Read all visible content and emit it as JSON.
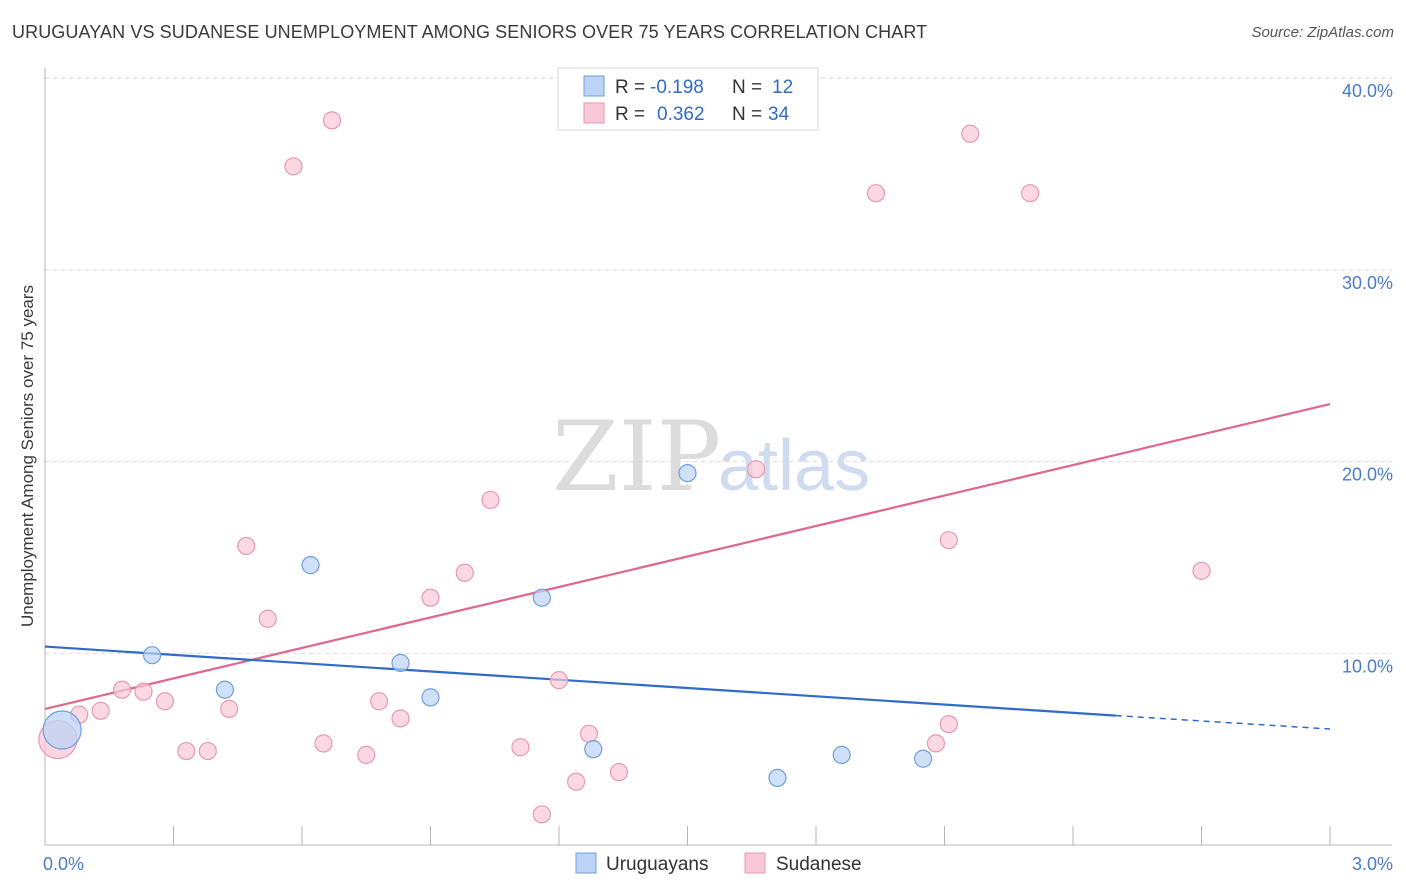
{
  "header": {
    "title": "URUGUAYAN VS SUDANESE UNEMPLOYMENT AMONG SENIORS OVER 75 YEARS CORRELATION CHART",
    "source": "Source: ZipAtlas.com"
  },
  "watermark": {
    "zip": "ZIP",
    "atlas": "atlas"
  },
  "colors": {
    "uruguayans_fill": "#bcd3f5",
    "uruguayans_stroke": "#6f9fdc",
    "uruguayans_line": "#2f6bc7",
    "sudanese_fill": "#f9c8d6",
    "sudanese_stroke": "#e899b1",
    "sudanese_line": "#e06890",
    "grid": "#d9d9d9",
    "tick_label": "#4a7cc9"
  },
  "legend": {
    "rows": [
      {
        "r_label": "R =",
        "r_value": "-0.198",
        "n_label": "N =",
        "n_value": "12"
      },
      {
        "r_label": "R =",
        "r_value": "0.362",
        "n_label": "N =",
        "n_value": "34"
      }
    ]
  },
  "chart_data": {
    "type": "scatter",
    "title": "URUGUAYAN VS SUDANESE UNEMPLOYMENT AMONG SENIORS OVER 75 YEARS CORRELATION CHART",
    "xlabel": "",
    "ylabel": "Unemployment Among Seniors over 75 years",
    "xlim": [
      0,
      3.0
    ],
    "ylim": [
      0,
      41
    ],
    "x_tick_labels": [
      "0.0%",
      "3.0%"
    ],
    "y_ticks": [
      10,
      20,
      30,
      40
    ],
    "y_tick_labels": [
      "10.0%",
      "20.0%",
      "30.0%",
      "40.0%"
    ],
    "grid": true,
    "legend_position": "top-center",
    "series": [
      {
        "name": "Uruguayans",
        "r": -0.198,
        "n": 12,
        "points": [
          {
            "x": 0.04,
            "y": 6.0,
            "big": true
          },
          {
            "x": 0.25,
            "y": 9.9
          },
          {
            "x": 0.42,
            "y": 8.1
          },
          {
            "x": 0.62,
            "y": 14.6
          },
          {
            "x": 0.83,
            "y": 9.5
          },
          {
            "x": 0.9,
            "y": 7.7
          },
          {
            "x": 1.16,
            "y": 12.9
          },
          {
            "x": 1.28,
            "y": 5.0
          },
          {
            "x": 1.5,
            "y": 19.4
          },
          {
            "x": 1.71,
            "y": 3.5
          },
          {
            "x": 1.86,
            "y": 4.7
          },
          {
            "x": 2.05,
            "y": 4.5
          }
        ],
        "trend": {
          "x0": 0.0,
          "y0": 10.35,
          "x1": 2.5,
          "y1": 6.75,
          "x_dash_end": 3.0,
          "y_dash_end": 6.05
        }
      },
      {
        "name": "Sudanese",
        "r": 0.362,
        "n": 34,
        "points": [
          {
            "x": 0.03,
            "y": 5.5,
            "big": true
          },
          {
            "x": 0.08,
            "y": 6.8
          },
          {
            "x": 0.13,
            "y": 7.0
          },
          {
            "x": 0.18,
            "y": 8.1
          },
          {
            "x": 0.23,
            "y": 8.0
          },
          {
            "x": 0.28,
            "y": 7.5
          },
          {
            "x": 0.33,
            "y": 4.9
          },
          {
            "x": 0.38,
            "y": 4.9
          },
          {
            "x": 0.43,
            "y": 7.1
          },
          {
            "x": 0.47,
            "y": 15.6
          },
          {
            "x": 0.52,
            "y": 11.8
          },
          {
            "x": 0.58,
            "y": 35.4
          },
          {
            "x": 0.65,
            "y": 5.3
          },
          {
            "x": 0.67,
            "y": 37.8
          },
          {
            "x": 0.75,
            "y": 4.7
          },
          {
            "x": 0.78,
            "y": 7.5
          },
          {
            "x": 0.83,
            "y": 6.6
          },
          {
            "x": 0.9,
            "y": 12.9
          },
          {
            "x": 0.98,
            "y": 14.2
          },
          {
            "x": 1.04,
            "y": 18.0
          },
          {
            "x": 1.11,
            "y": 5.1
          },
          {
            "x": 1.16,
            "y": 1.6
          },
          {
            "x": 1.2,
            "y": 8.6
          },
          {
            "x": 1.24,
            "y": 3.3
          },
          {
            "x": 1.27,
            "y": 5.8
          },
          {
            "x": 1.34,
            "y": 3.8
          },
          {
            "x": 1.66,
            "y": 19.6
          },
          {
            "x": 1.94,
            "y": 34.0
          },
          {
            "x": 2.08,
            "y": 5.3
          },
          {
            "x": 2.11,
            "y": 6.3
          },
          {
            "x": 2.11,
            "y": 15.9
          },
          {
            "x": 2.16,
            "y": 37.1
          },
          {
            "x": 2.3,
            "y": 34.0
          },
          {
            "x": 2.7,
            "y": 14.3
          }
        ],
        "trend": {
          "x0": 0.0,
          "y0": 7.1,
          "x1": 3.0,
          "y1": 23.0
        }
      }
    ]
  }
}
